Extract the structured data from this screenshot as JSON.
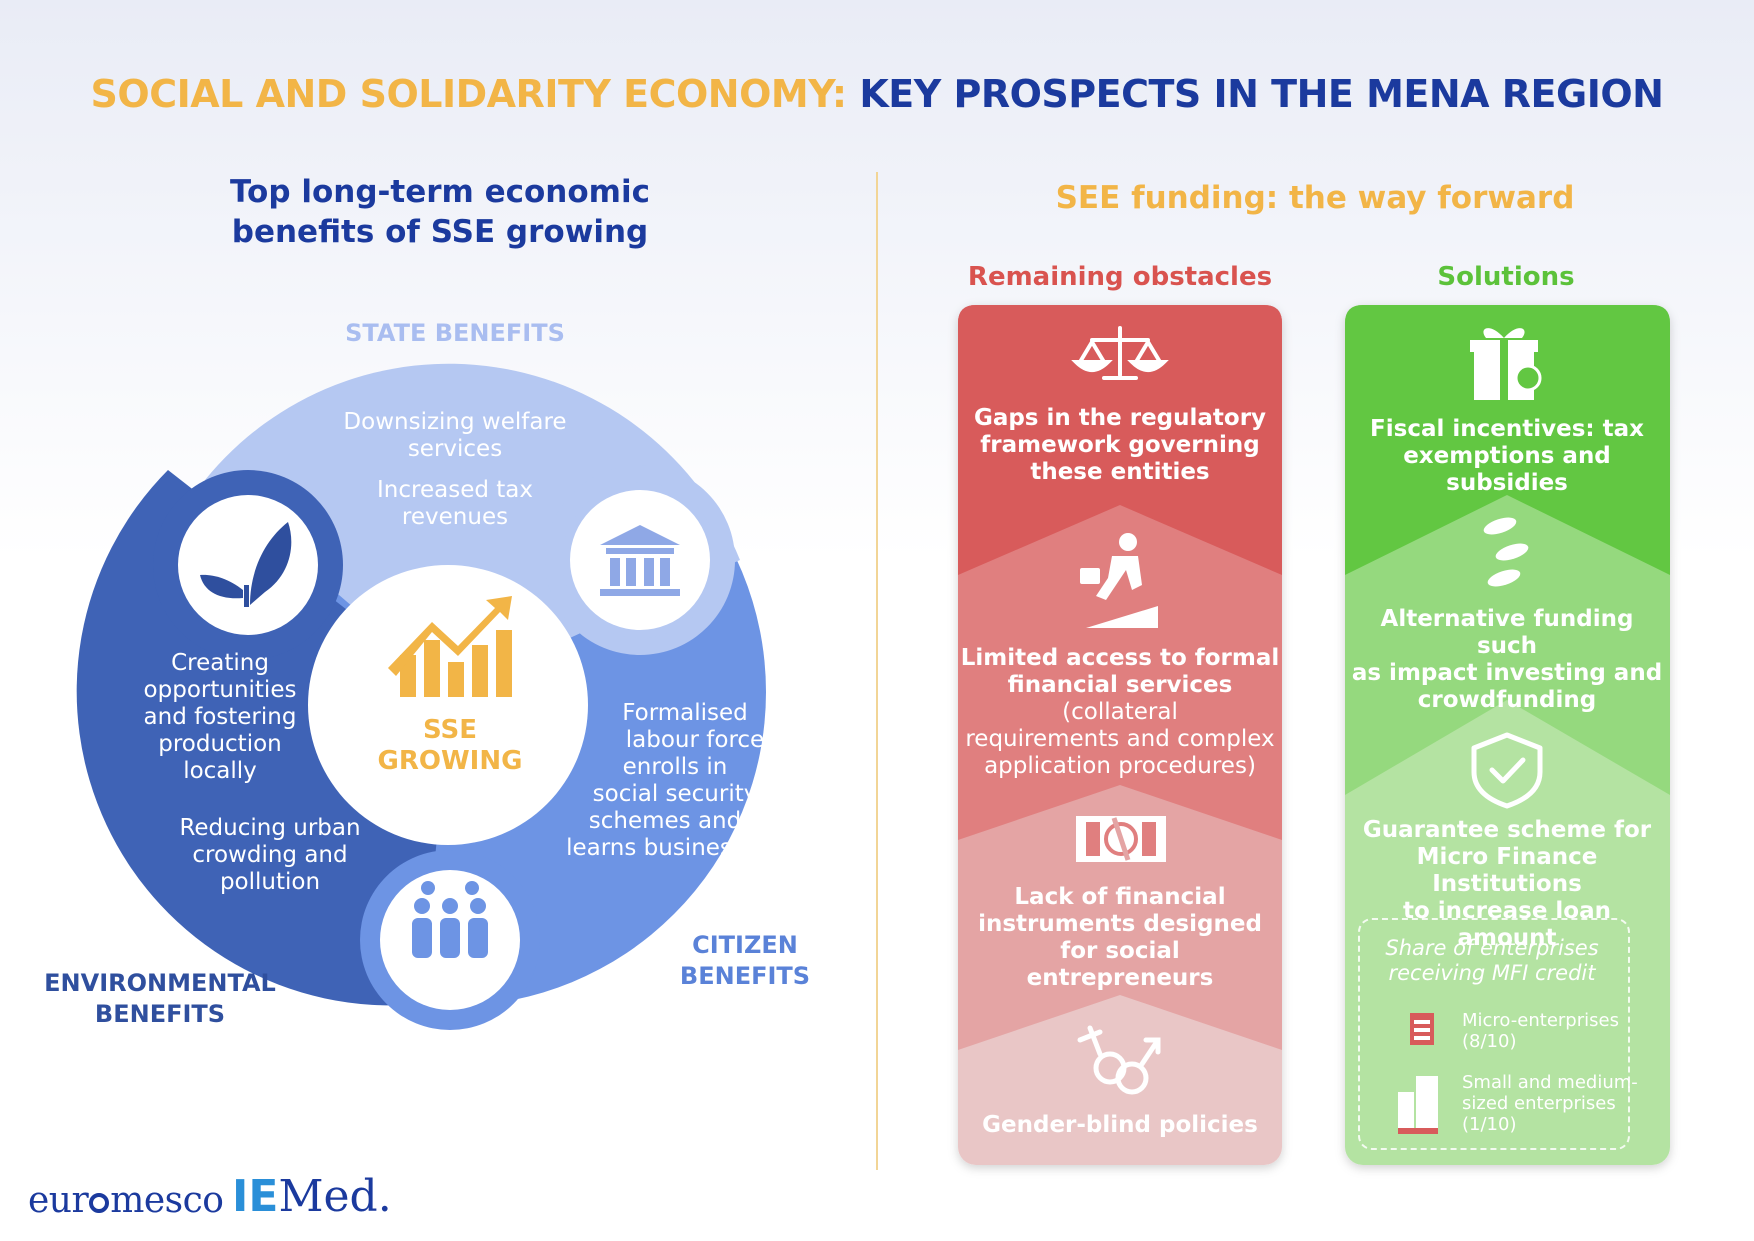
{
  "title": {
    "part1": "SOCIAL AND SOLIDARITY ECONOMY:",
    "part2": "KEY PROSPECTS IN THE MENA REGION"
  },
  "left": {
    "heading_line1": "Top long-term economic",
    "heading_line2": "benefits of SSE growing",
    "center_label_line1": "SSE",
    "center_label_line2": "GROWING",
    "state": {
      "label": "STATE BENEFITS",
      "item1_line1": "Downsizing welfare",
      "item1_line2": "services",
      "item2_line1": "Increased tax",
      "item2_line2": "revenues"
    },
    "environmental": {
      "label_line1": "ENVIRONMENTAL",
      "label_line2": "BENEFITS",
      "item1_lines": [
        "Creating",
        "opportunities",
        "and fostering",
        "production",
        "locally"
      ],
      "item2_lines": [
        "Reducing urban",
        "crowding and",
        "pollution"
      ]
    },
    "citizen": {
      "label_line1": "CITIZEN",
      "label_line2": "BENEFITS",
      "item_lines": [
        "Formalised",
        "labour force",
        "enrolls in",
        "social security",
        "schemes and",
        "learns business"
      ]
    },
    "colors": {
      "state": "#b5c8f2",
      "environmental": "#3f63b6",
      "citizen": "#6d94e4",
      "accent": "#f2b547"
    }
  },
  "right": {
    "heading": "SEE funding: the way forward",
    "obstacles": {
      "heading": "Remaining obstacles",
      "item1_lines": [
        "Gaps in the regulatory",
        "framework governing",
        "these entities"
      ],
      "item2_bold_lines": [
        "Limited access to formal",
        "financial services"
      ],
      "item2_normal_inline": " (collateral",
      "item2_normal_lines": [
        "requirements and complex",
        "application procedures)"
      ],
      "item3_lines": [
        "Lack of financial",
        "instruments designed",
        "for social entrepreneurs"
      ],
      "item4_lines": [
        "Gender-blind policies"
      ],
      "icons": [
        "scales-icon",
        "businessman-climbing-icon",
        "banknote-icon",
        "gender-symbols-icon"
      ],
      "colors": [
        "#d85b5b",
        "#e07f7f",
        "#e4a4a4",
        "#e9c6c6"
      ]
    },
    "solutions": {
      "heading": "Solutions",
      "item1_lines": [
        "Fiscal incentives: tax",
        "exemptions and subsidies"
      ],
      "item2_lines": [
        "Alternative funding such",
        "as impact investing and",
        "crowdfunding"
      ],
      "item3_lines": [
        "Guarantee scheme for",
        "Micro Finance Institutions",
        "to increase loan amount"
      ],
      "icons": [
        "gift-percent-icon",
        "coins-icon",
        "shield-check-icon"
      ],
      "colors": [
        "#62c742",
        "#95d97e",
        "#b4e3a2"
      ],
      "mfi": {
        "title_lines": [
          "Share of enterprises",
          "receiving MFI credit"
        ],
        "micro_lines": [
          "Micro-enterprises",
          "(8/10)"
        ],
        "micro_share": 0.8,
        "sme_lines": [
          "Small and medium-",
          "sized enterprises",
          "(1/10)"
        ],
        "sme_share": 0.1
      }
    }
  },
  "logos": {
    "euromesco_a": "eur",
    "euromesco_b": "mesco",
    "iemed_a": "IE",
    "iemed_b": "Med."
  }
}
